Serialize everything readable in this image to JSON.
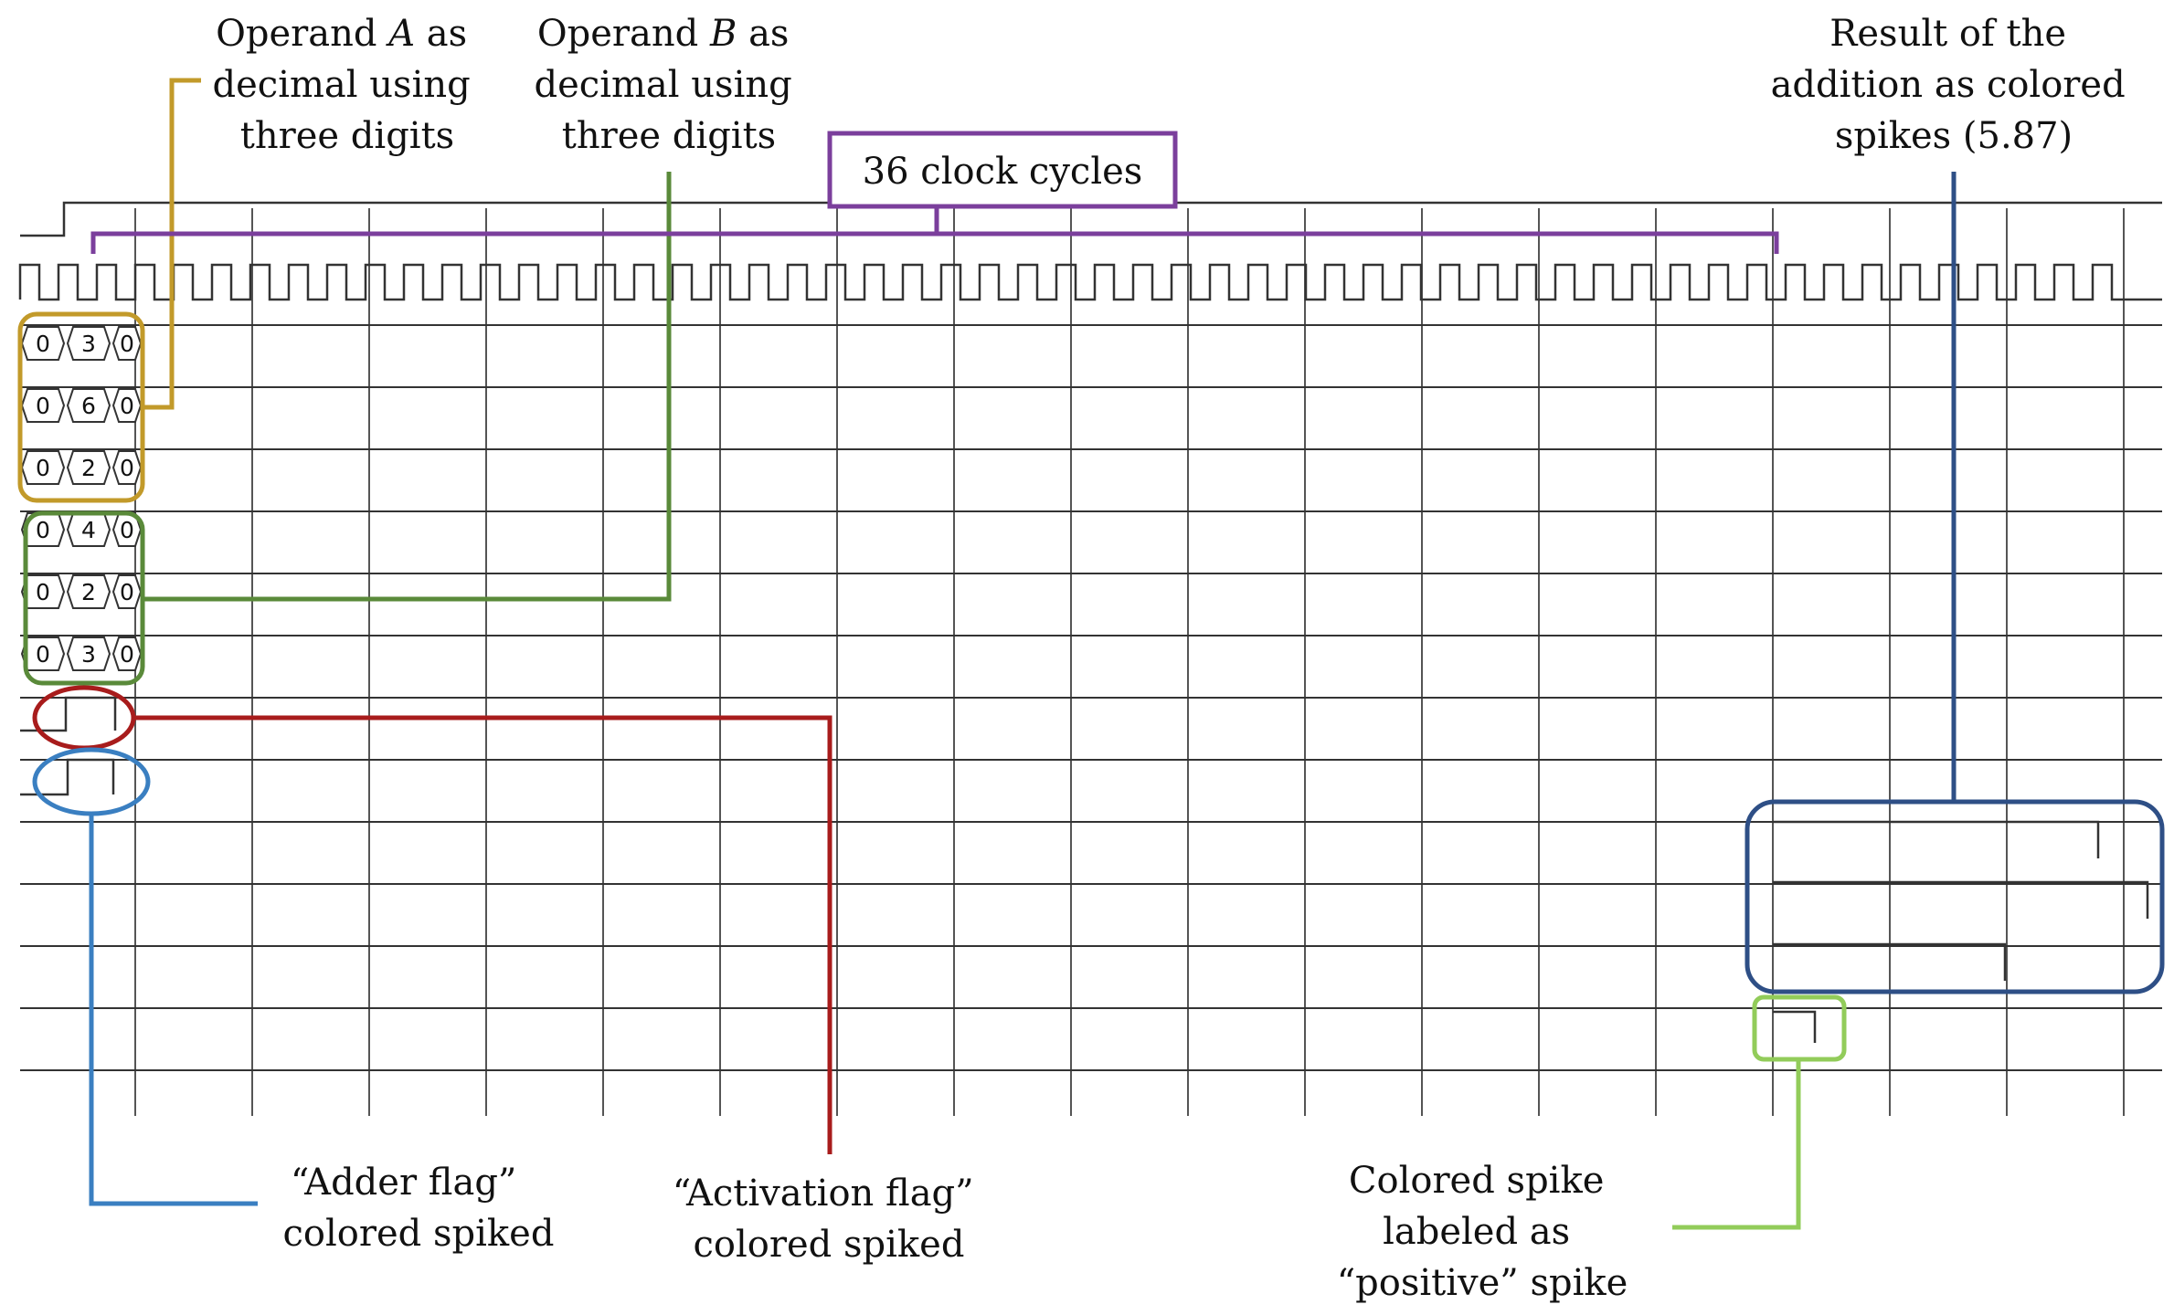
{
  "annotations": {
    "operand_a": {
      "lines": [
        "Operand ",
        "decimal using",
        "three digits"
      ],
      "var": "A",
      "suffix": " as",
      "color": "#c29a2a"
    },
    "operand_b": {
      "lines": [
        "Operand ",
        "decimal using",
        "three digits"
      ],
      "var": "B",
      "suffix": " as",
      "color": "#5a8a3a"
    },
    "clock_cycles": {
      "text": "36 clock cycles",
      "color": "#7b3f9c"
    },
    "result": {
      "lines": [
        "Result of the",
        "addition as colored",
        "spikes (5.87)"
      ],
      "color": "#2e4f86"
    },
    "adder_flag": {
      "lines": [
        "“Adder flag”",
        "colored spiked"
      ],
      "color": "#3a7fc1"
    },
    "activation_flag": {
      "lines": [
        "“Activation flag”",
        "colored spiked"
      ],
      "color": "#a81c1c"
    },
    "positive_spike": {
      "lines": [
        "Colored spike",
        "labeled as",
        "“positive” spike"
      ],
      "color": "#92cc5a"
    }
  },
  "waveform": {
    "clock_cycles_marked": 36,
    "operand_a_digits": [
      [
        "0",
        "3",
        "0"
      ],
      [
        "0",
        "6",
        "0"
      ],
      [
        "0",
        "2",
        "0"
      ]
    ],
    "operand_b_digits": [
      [
        "0",
        "4",
        "0"
      ],
      [
        "0",
        "2",
        "0"
      ],
      [
        "0",
        "3",
        "0"
      ]
    ],
    "trace_color": "#333333",
    "grid_color": "#555555"
  }
}
